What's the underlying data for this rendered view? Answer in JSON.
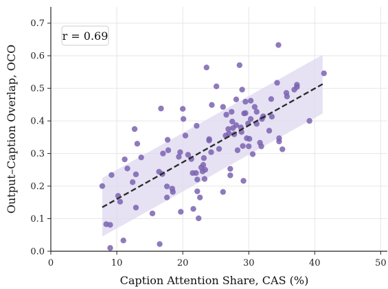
{
  "chart_data": {
    "type": "scatter",
    "xlabel": "Caption Attention Share, CAS (%)",
    "ylabel": "Output–Caption Overlap, OCO",
    "xlim": [
      0,
      51
    ],
    "ylim": [
      0,
      0.75
    ],
    "xticks": [
      0,
      10,
      20,
      30,
      40,
      50
    ],
    "yticks": [
      0.0,
      0.1,
      0.2,
      0.3,
      0.4,
      0.5,
      0.6,
      0.7
    ],
    "ytick_labels": [
      "0.0",
      "0.1",
      "0.2",
      "0.3",
      "0.4",
      "0.5",
      "0.6",
      "0.7"
    ],
    "grid": true,
    "annotation": {
      "text": "r = 0.69",
      "position": "top-left"
    },
    "colors": {
      "points": "#7b63b0",
      "trend": "#2b2b2b",
      "band": "#ddd8f0"
    },
    "trend": {
      "x_start": 7.8,
      "y_start": 0.135,
      "x_end": 41.2,
      "y_end": 0.513,
      "style": "dashed"
    },
    "band": {
      "half_width": 0.09
    },
    "points": [
      [
        7.8,
        0.2
      ],
      [
        8.4,
        0.083
      ],
      [
        9.0,
        0.081
      ],
      [
        9.0,
        0.01
      ],
      [
        9.2,
        0.234
      ],
      [
        10.2,
        0.17
      ],
      [
        10.5,
        0.152
      ],
      [
        11.0,
        0.033
      ],
      [
        11.2,
        0.282
      ],
      [
        11.6,
        0.254
      ],
      [
        12.4,
        0.212
      ],
      [
        12.7,
        0.375
      ],
      [
        12.9,
        0.236
      ],
      [
        12.9,
        0.134
      ],
      [
        13.1,
        0.33
      ],
      [
        13.7,
        0.288
      ],
      [
        15.4,
        0.116
      ],
      [
        16.4,
        0.244
      ],
      [
        16.5,
        0.022
      ],
      [
        16.7,
        0.438
      ],
      [
        16.9,
        0.237
      ],
      [
        17.0,
        0.3
      ],
      [
        17.6,
        0.199
      ],
      [
        17.6,
        0.165
      ],
      [
        17.7,
        0.342
      ],
      [
        17.8,
        0.31
      ],
      [
        18.4,
        0.192
      ],
      [
        18.5,
        0.182
      ],
      [
        19.4,
        0.29
      ],
      [
        19.6,
        0.304
      ],
      [
        19.7,
        0.121
      ],
      [
        20.0,
        0.437
      ],
      [
        20.1,
        0.406
      ],
      [
        20.4,
        0.355
      ],
      [
        20.8,
        0.296
      ],
      [
        21.3,
        0.283
      ],
      [
        21.5,
        0.24
      ],
      [
        21.6,
        0.13
      ],
      [
        22.0,
        0.24
      ],
      [
        22.1,
        0.385
      ],
      [
        22.2,
        0.184
      ],
      [
        22.2,
        0.22
      ],
      [
        22.4,
        0.101
      ],
      [
        22.6,
        0.165
      ],
      [
        22.8,
        0.257
      ],
      [
        23.0,
        0.245
      ],
      [
        23.1,
        0.265
      ],
      [
        23.2,
        0.286
      ],
      [
        23.3,
        0.222
      ],
      [
        23.4,
        0.25
      ],
      [
        23.6,
        0.564
      ],
      [
        24.0,
        0.344
      ],
      [
        24.0,
        0.34
      ],
      [
        24.3,
        0.304
      ],
      [
        24.4,
        0.449
      ],
      [
        25.1,
        0.506
      ],
      [
        25.5,
        0.314
      ],
      [
        26.1,
        0.443
      ],
      [
        26.1,
        0.182
      ],
      [
        26.5,
        0.355
      ],
      [
        26.6,
        0.419
      ],
      [
        26.9,
        0.375
      ],
      [
        27.0,
        0.361
      ],
      [
        27.2,
        0.253
      ],
      [
        27.2,
        0.233
      ],
      [
        27.4,
        0.428
      ],
      [
        27.5,
        0.398
      ],
      [
        27.6,
        0.378
      ],
      [
        27.8,
        0.359
      ],
      [
        28.1,
        0.466
      ],
      [
        28.1,
        0.387
      ],
      [
        28.3,
        0.31
      ],
      [
        28.6,
        0.571
      ],
      [
        28.8,
        0.38
      ],
      [
        28.9,
        0.366
      ],
      [
        29.0,
        0.496
      ],
      [
        29.1,
        0.323
      ],
      [
        29.2,
        0.216
      ],
      [
        29.3,
        0.423
      ],
      [
        29.5,
        0.459
      ],
      [
        29.5,
        0.424
      ],
      [
        29.7,
        0.347
      ],
      [
        29.9,
        0.392
      ],
      [
        30.0,
        0.322
      ],
      [
        30.1,
        0.345
      ],
      [
        30.3,
        0.462
      ],
      [
        30.3,
        0.406
      ],
      [
        30.6,
        0.298
      ],
      [
        30.9,
        0.443
      ],
      [
        31.2,
        0.428
      ],
      [
        31.2,
        0.391
      ],
      [
        31.7,
        0.333
      ],
      [
        31.9,
        0.322
      ],
      [
        32.0,
        0.406
      ],
      [
        32.2,
        0.414
      ],
      [
        33.1,
        0.37
      ],
      [
        33.4,
        0.467
      ],
      [
        33.5,
        0.413
      ],
      [
        34.3,
        0.517
      ],
      [
        34.5,
        0.633
      ],
      [
        34.6,
        0.347
      ],
      [
        34.6,
        0.337
      ],
      [
        35.1,
        0.313
      ],
      [
        35.7,
        0.486
      ],
      [
        35.8,
        0.475
      ],
      [
        36.9,
        0.496
      ],
      [
        37.3,
        0.511
      ],
      [
        37.3,
        0.504
      ],
      [
        39.2,
        0.4
      ],
      [
        41.4,
        0.546
      ]
    ]
  }
}
